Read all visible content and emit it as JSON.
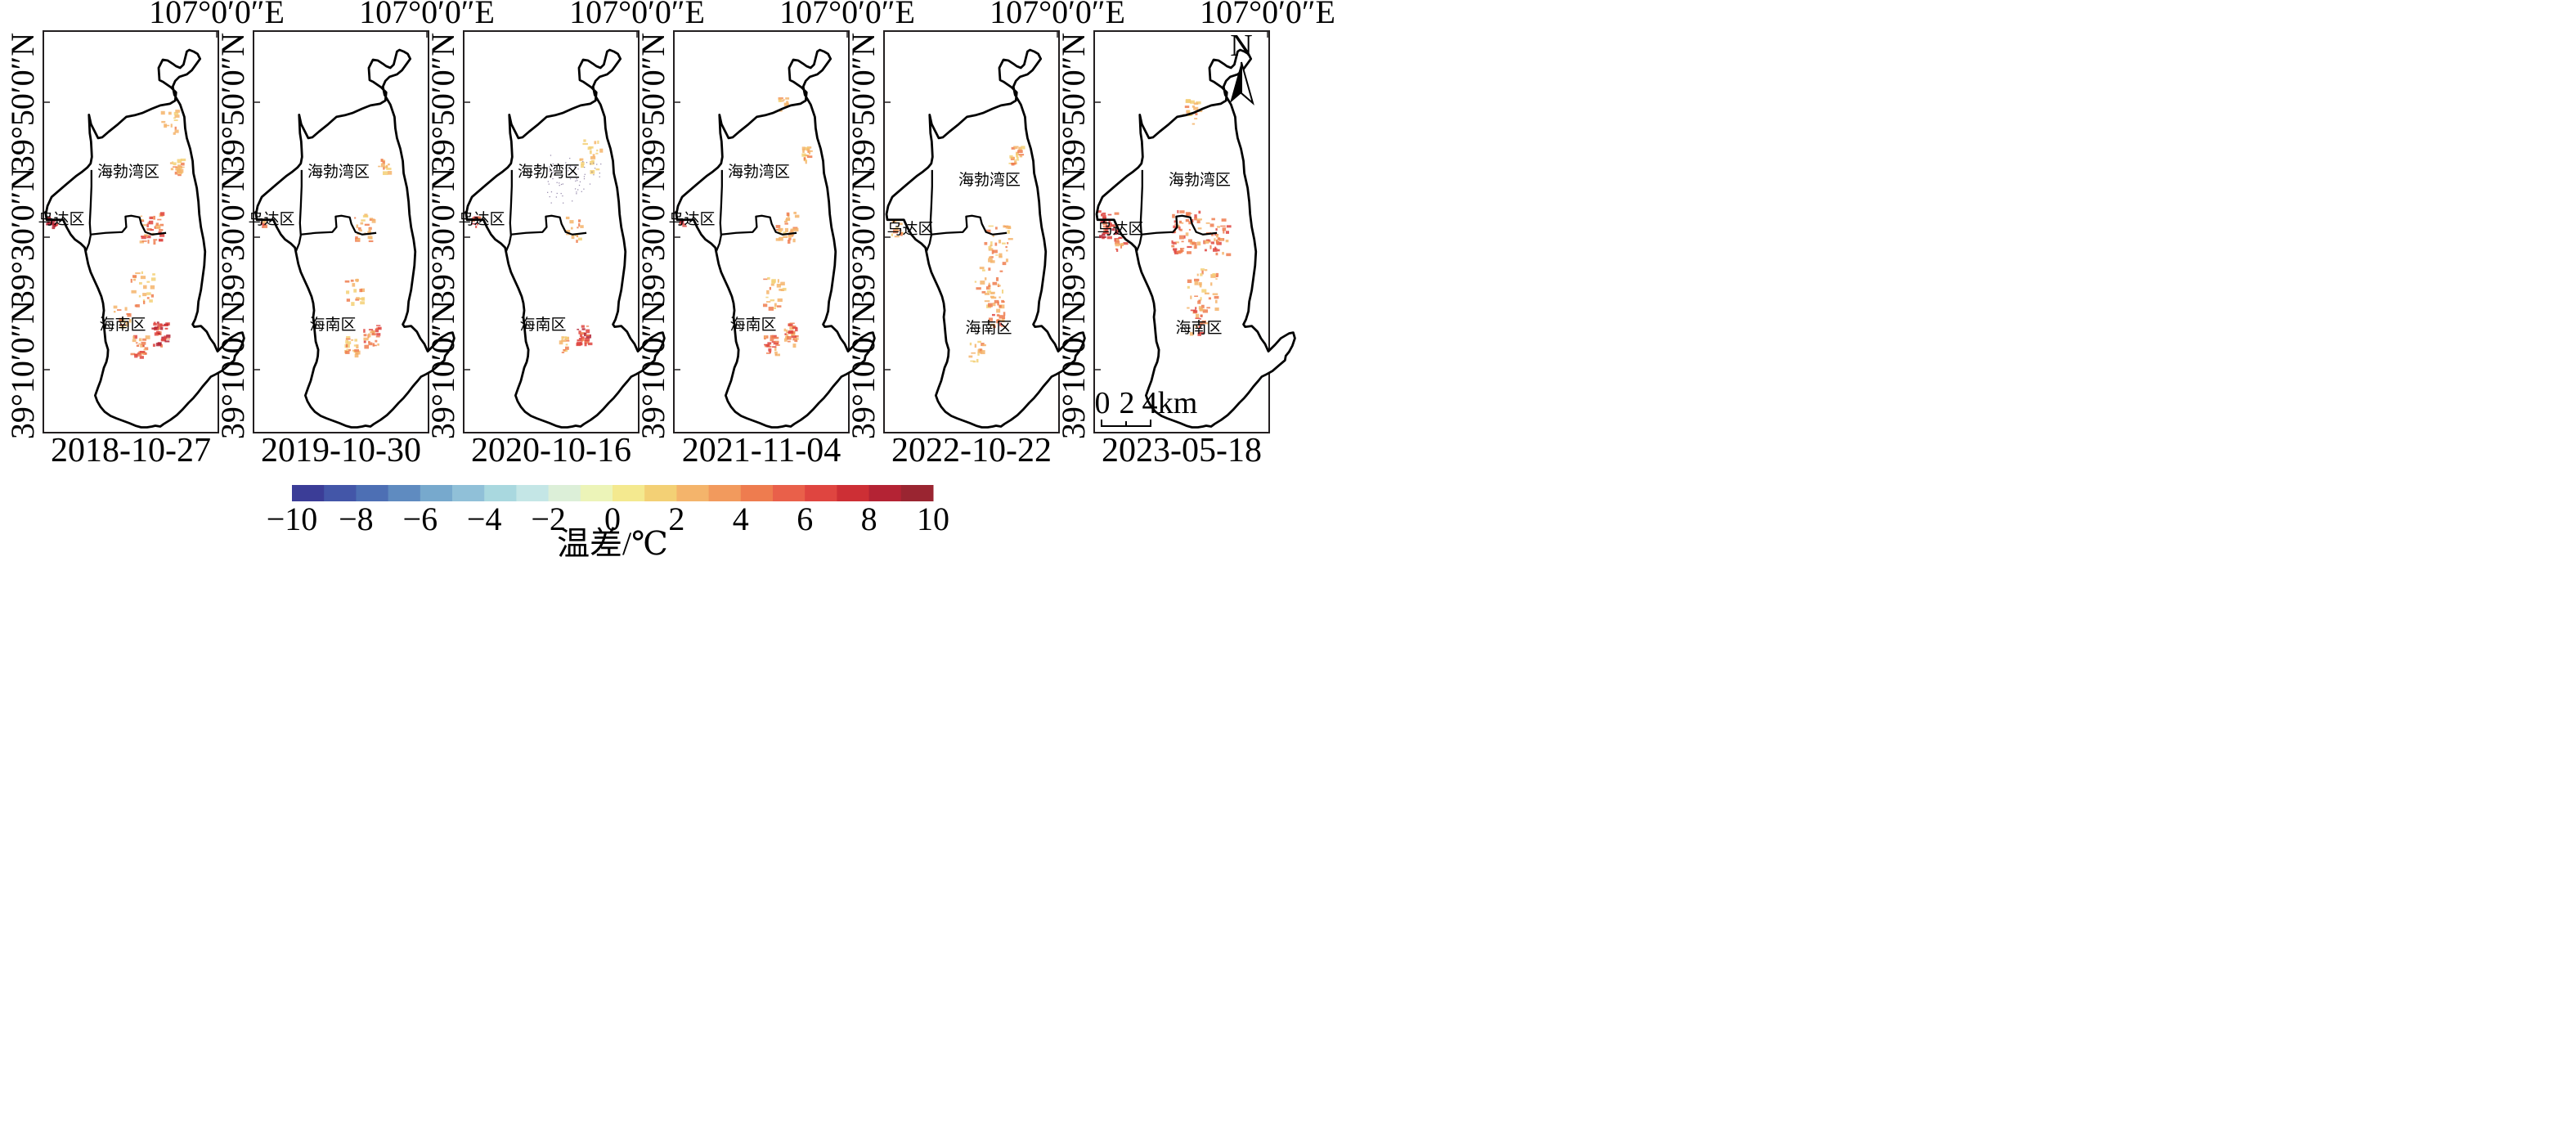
{
  "panels": [
    {
      "lon_label": "107°0′0″E",
      "date": "2018-10-27",
      "lat_labels": [
        "39°50′0″N",
        "39°30′0″N",
        "39°10′0″N"
      ],
      "district_labels": {
        "haibowan": "海勃湾区",
        "wuda": "乌达区",
        "hainan": "海南区"
      }
    },
    {
      "lon_label": "107°0′0″E",
      "date": "2019-10-30",
      "lat_labels": [
        "39°50′0″N",
        "39°30′0″N",
        "39°10′0″N"
      ],
      "district_labels": {
        "haibowan": "海勃湾区",
        "wuda": "乌达区",
        "hainan": "海南区"
      }
    },
    {
      "lon_label": "107°0′0″E",
      "date": "2020-10-16",
      "lat_labels": [
        "39°50′0″N",
        "39°30′0″N",
        "39°10′0″N"
      ],
      "district_labels": {
        "haibowan": "海勃湾区",
        "wuda": "乌达区",
        "hainan": "海南区"
      }
    },
    {
      "lon_label": "107°0′0″E",
      "date": "2021-11-04",
      "lat_labels": [
        "39°50′0″N",
        "39°30′0″N",
        "39°10′0″N"
      ],
      "district_labels": {
        "haibowan": "海勃湾区",
        "wuda": "乌达区",
        "hainan": "海南区"
      }
    },
    {
      "lon_label": "107°0′0″E",
      "date": "2022-10-22",
      "lat_labels": [
        "39°50′0″N",
        "39°30′0″N",
        "39°10′0″N"
      ],
      "district_labels": {
        "haibowan": "海勃湾区",
        "wuda": "乌达区",
        "hainan": "海南区"
      }
    },
    {
      "lon_label": "107°0′0″E",
      "date": "2023-05-18",
      "lat_labels": [
        "39°50′0″N",
        "39°30′0″N",
        "39°10′0″N"
      ],
      "district_labels": {
        "haibowan": "海勃湾区",
        "wuda": "乌达区",
        "hainan": "海南区"
      }
    }
  ],
  "north_arrow": {
    "label": "N"
  },
  "scale_bar": {
    "ticks": [
      "0",
      "2",
      "4"
    ],
    "unit": "km"
  },
  "legend": {
    "title": "温差/℃",
    "min": -10,
    "max": 10,
    "step": 1,
    "tick_labels": [
      "−10",
      "−8",
      "−6",
      "−4",
      "−2",
      "0",
      "2",
      "4",
      "6",
      "8",
      "10"
    ],
    "colors": [
      "#3b3d97",
      "#4356a8",
      "#4d6fb4",
      "#5f8bc0",
      "#77a9cd",
      "#90c0d8",
      "#a9d8df",
      "#c4e6e6",
      "#dcefd8",
      "#ecf4b8",
      "#f4e98f",
      "#f3d075",
      "#f4b46b",
      "#f29a5d",
      "#ee7c4f",
      "#e9604a",
      "#df4540",
      "#cd2f35",
      "#b42334",
      "#9a2531"
    ]
  }
}
